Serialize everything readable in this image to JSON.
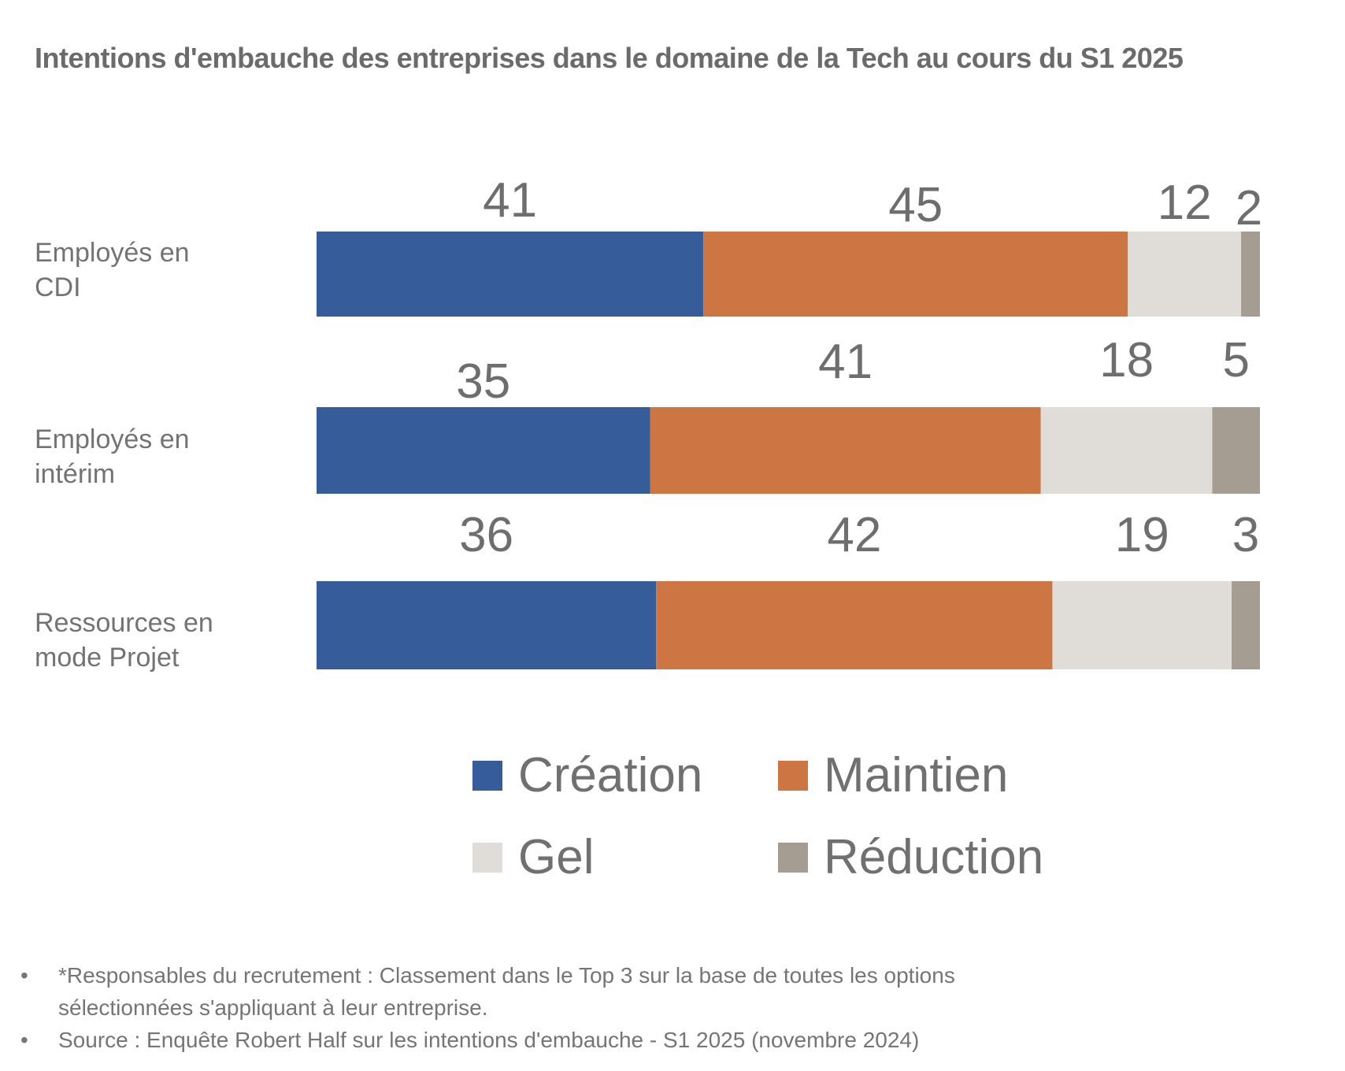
{
  "chart_data": {
    "type": "bar",
    "orientation": "horizontal",
    "stacked": true,
    "title": "Intentions d'embauche des entreprises dans le domaine de la Tech au cours du S1 2025",
    "xlabel": "",
    "ylabel": "",
    "grid": false,
    "legend_position": "bottom",
    "categories": [
      "Employés en CDI",
      "Employés en intérim",
      "Ressources en mode Projet"
    ],
    "category_lines": [
      [
        "Employés en",
        "CDI"
      ],
      [
        "Employés en",
        "intérim"
      ],
      [
        "Ressources en",
        "mode Projet"
      ]
    ],
    "series": [
      {
        "name": "Création",
        "color": "#365c99",
        "values": [
          41,
          35,
          36
        ]
      },
      {
        "name": "Maintien",
        "color": "#cd7643",
        "values": [
          45,
          41,
          42
        ]
      },
      {
        "name": "Gel",
        "color": "#e0ddd8",
        "values": [
          12,
          18,
          19
        ]
      },
      {
        "name": "Réduction",
        "color": "#a59d91",
        "values": [
          2,
          5,
          3
        ]
      }
    ]
  },
  "footnotes": [
    {
      "bullet": "•",
      "lines": [
        "*Responsables du recrutement : Classement dans le Top 3 sur la base de toutes les options",
        "sélectionnées s'appliquant à leur entreprise."
      ]
    },
    {
      "bullet": "•",
      "lines": [
        "Source : Enquête Robert Half sur les intentions d'embauche - S1 2025 (novembre 2024)"
      ]
    }
  ]
}
